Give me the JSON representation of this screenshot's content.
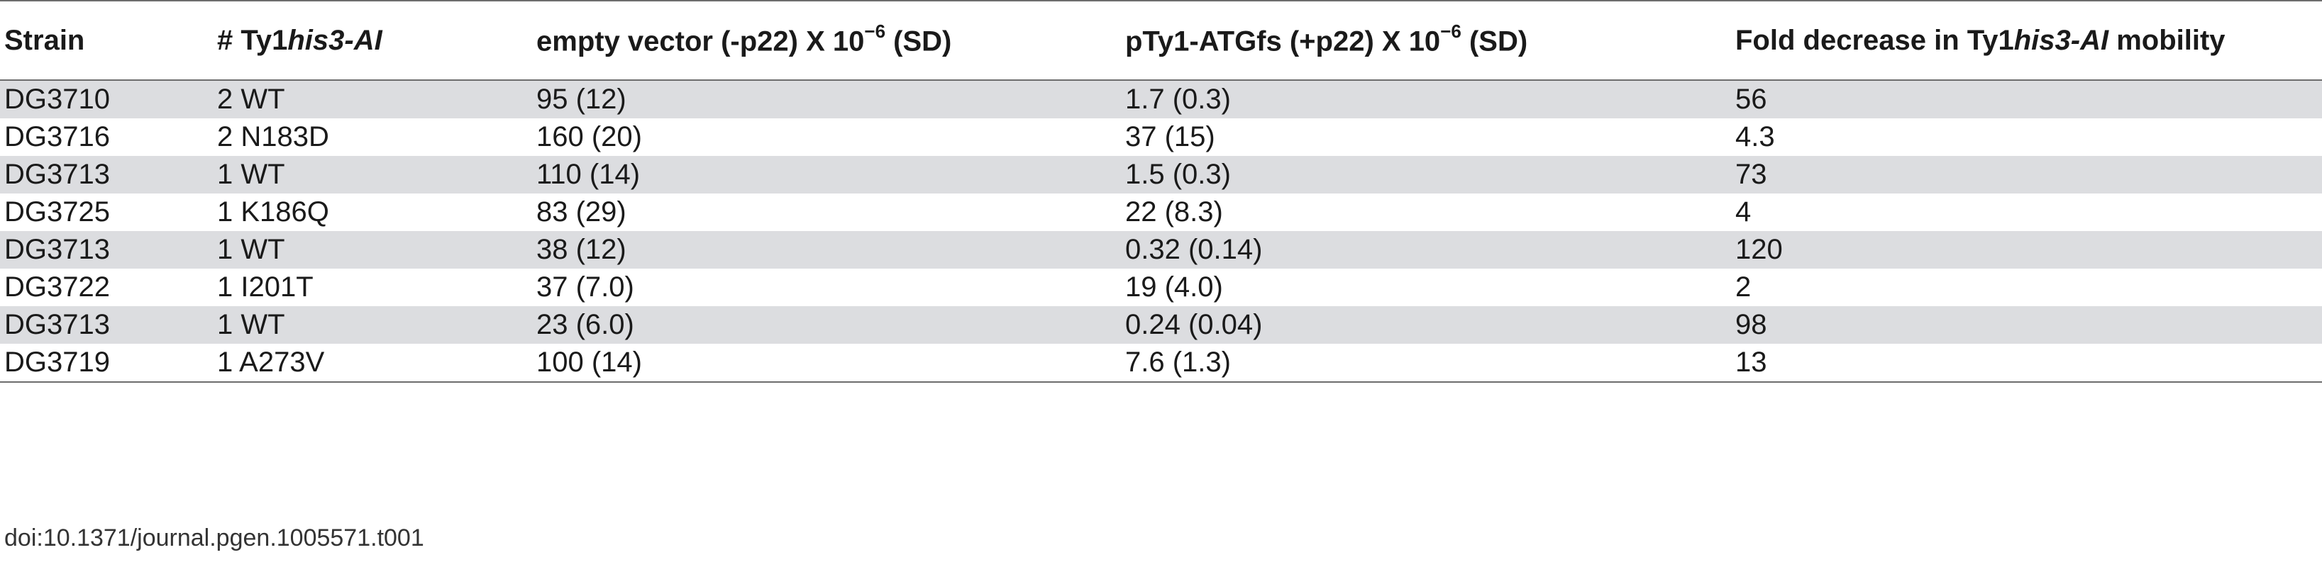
{
  "table": {
    "headers": {
      "strain": "Strain",
      "num_prefix": "# Ty1",
      "num_italic": "his3-AI",
      "empty_prefix": "empty vector (-p22) X 10",
      "empty_exp": "−6",
      "empty_suffix": " (SD)",
      "pty_prefix": "pTy1-ATGfs (+p22) X 10",
      "pty_exp": "−6",
      "pty_suffix": " (SD)",
      "fold_prefix": "Fold decrease in Ty1",
      "fold_italic": "his3-AI",
      "fold_suffix": " mobility"
    },
    "rows": [
      {
        "strain": "DG3710",
        "copies": "2 WT",
        "empty": "95 (12)",
        "pty": "1.7 (0.3)",
        "fold": "56"
      },
      {
        "strain": "DG3716",
        "copies": "2 N183D",
        "empty": "160 (20)",
        "pty": "37 (15)",
        "fold": "4.3"
      },
      {
        "strain": "DG3713",
        "copies": "1 WT",
        "empty": "110 (14)",
        "pty": "1.5 (0.3)",
        "fold": "73"
      },
      {
        "strain": "DG3725",
        "copies": "1 K186Q",
        "empty": "83 (29)",
        "pty": "22 (8.3)",
        "fold": "4"
      },
      {
        "strain": "DG3713",
        "copies": "1 WT",
        "empty": "38 (12)",
        "pty": "0.32 (0.14)",
        "fold": "120"
      },
      {
        "strain": "DG3722",
        "copies": "1 I201T",
        "empty": "37 (7.0)",
        "pty": "19 (4.0)",
        "fold": "2"
      },
      {
        "strain": "DG3713",
        "copies": "1 WT",
        "empty": "23 (6.0)",
        "pty": "0.24 (0.04)",
        "fold": "98"
      },
      {
        "strain": "DG3719",
        "copies": "1 A273V",
        "empty": "100 (14)",
        "pty": "7.6 (1.3)",
        "fold": "13"
      }
    ]
  },
  "footer": {
    "doi": "doi:10.1371/journal.pgen.1005571.t001"
  }
}
